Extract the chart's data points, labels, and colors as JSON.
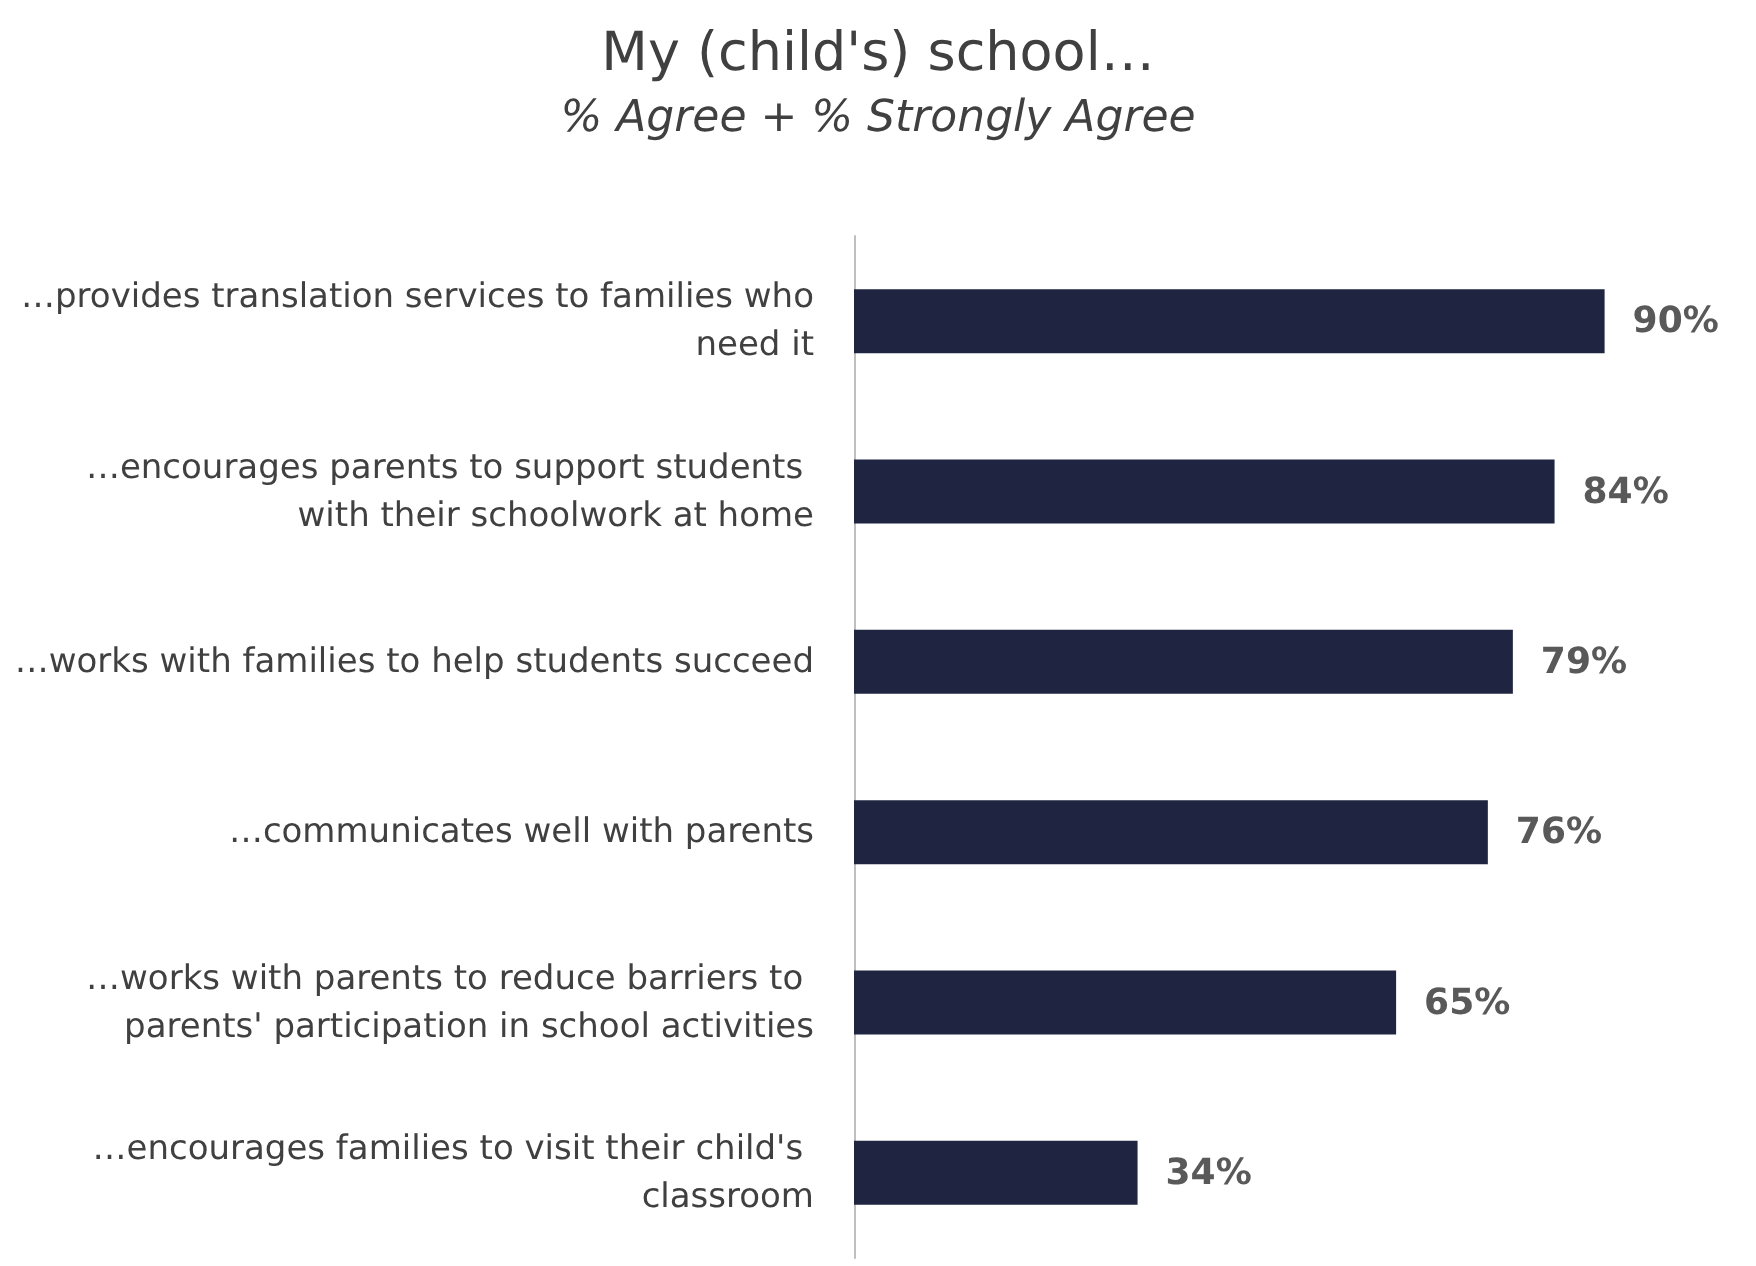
{
  "chart_data": {
    "type": "bar",
    "orientation": "horizontal",
    "title": "My (child's) school…",
    "subtitle": "% Agree + % Strongly Agree",
    "categories": [
      "…provides translation services to families who need it",
      "…encourages parents to support students with their schoolwork at home",
      "…works with families to help students succeed",
      "…communicates well with parents",
      "…works with parents to reduce barriers to parents' participation in school activities",
      "…encourages families to visit their child's classroom"
    ],
    "values": [
      90,
      84,
      79,
      76,
      65,
      34
    ],
    "value_labels": [
      "90%",
      "84%",
      "79%",
      "76%",
      "65%",
      "34%"
    ],
    "color": "#1f2440",
    "grid": false
  }
}
